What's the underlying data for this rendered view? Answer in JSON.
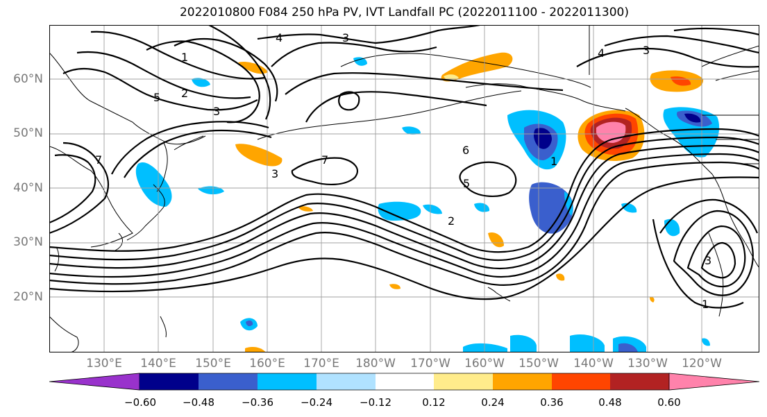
{
  "title": "2022010800 F084 250 hPa PV, IVT Landfall PC (2022011100 - 2022011300)",
  "map": {
    "lat_labels": [
      "60°N",
      "50°N",
      "40°N",
      "30°N",
      "20°N"
    ],
    "lon_labels": [
      "130°E",
      "140°E",
      "150°E",
      "160°E",
      "170°E",
      "180°W",
      "170°W",
      "160°W",
      "150°W",
      "140°W",
      "130°W",
      "120°W"
    ],
    "contour_labels": [
      "1",
      "2",
      "3",
      "4",
      "5",
      "6",
      "7",
      "3",
      "4",
      "3",
      "7",
      "6",
      "5",
      "2",
      "3",
      "1",
      "3",
      "1"
    ],
    "colors": {
      "background": "#ffffff",
      "land_outline": "#000000",
      "grid": "#a0a0a0",
      "contour": "#000000"
    }
  },
  "colorbar": {
    "ticks": [
      "−0.60",
      "−0.48",
      "−0.36",
      "−0.24",
      "−0.12",
      "0.12",
      "0.24",
      "0.36",
      "0.48",
      "0.60"
    ],
    "colors": [
      "#9932cc",
      "#00008b",
      "#3a5fcd",
      "#00bfff",
      "#b0e2ff",
      "#ffffff",
      "#ffec8b",
      "#ffa500",
      "#ff4500",
      "#b22222",
      "#ff82ab"
    ]
  }
}
